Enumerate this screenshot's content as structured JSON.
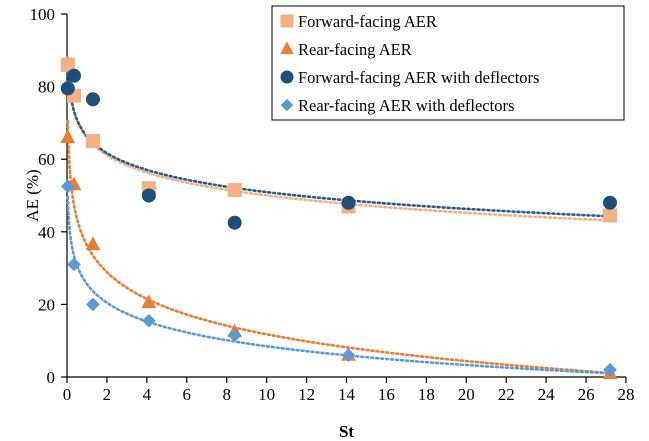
{
  "chart_data": {
    "type": "scatter",
    "xlabel": "St",
    "ylabel": "AE (%)",
    "xlim": [
      0,
      28
    ],
    "ylim": [
      0,
      100
    ],
    "xticks": [
      0,
      2,
      4,
      6,
      8,
      10,
      12,
      14,
      16,
      18,
      20,
      22,
      24,
      26,
      28
    ],
    "yticks": [
      0,
      20,
      40,
      60,
      80,
      100
    ],
    "grid": false,
    "legend_position": "top-right",
    "series": [
      {
        "name": "Forward-facing AER",
        "marker": "square",
        "color": "#f4b183",
        "trend_color": "#f4b183",
        "x": [
          0.04,
          0.35,
          1.3,
          4.1,
          8.4,
          14.1,
          27.2
        ],
        "y": [
          86,
          77.5,
          65,
          52,
          51.5,
          47,
          44.5
        ],
        "trendline": "logarithmic"
      },
      {
        "name": "Rear-facing AER",
        "marker": "triangle",
        "color": "#ed7d31",
        "trend_color": "#ed7d31",
        "x": [
          0.04,
          0.35,
          1.3,
          4.1,
          8.4,
          14.1,
          27.2
        ],
        "y": [
          66,
          53,
          36.5,
          20.5,
          12.5,
          6,
          1
        ],
        "trendline": "logarithmic"
      },
      {
        "name": "Forward-facing AER with deflectors",
        "marker": "circle",
        "color": "#1f4e79",
        "trend_color": "#2e5c8a",
        "x": [
          0.04,
          0.35,
          1.3,
          4.1,
          8.4,
          14.1,
          27.2
        ],
        "y": [
          79.5,
          83,
          76.5,
          50,
          42.5,
          48,
          48
        ],
        "trendline": "logarithmic"
      },
      {
        "name": "Rear-facing AER with deflectors",
        "marker": "diamond",
        "color": "#5b9bd5",
        "trend_color": "#5b9bd5",
        "x": [
          0.04,
          0.35,
          1.3,
          4.1,
          8.4,
          14.1,
          27.2
        ],
        "y": [
          52.5,
          31,
          20,
          15.5,
          11.5,
          6,
          2
        ],
        "trendline": "logarithmic"
      }
    ]
  }
}
